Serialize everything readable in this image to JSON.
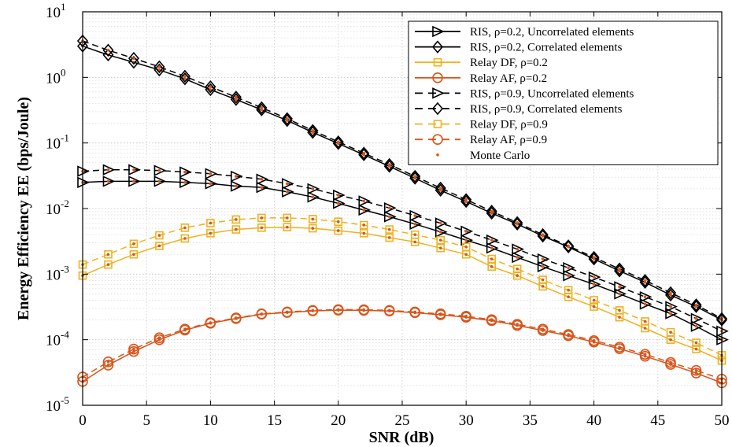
{
  "chart_data": {
    "type": "line",
    "title": "",
    "xlabel": "SNR (dB)",
    "ylabel": "Energy Efficiency EE (bps/Joule)",
    "xlim": [
      0,
      50
    ],
    "ylim": [
      1e-05,
      10
    ],
    "yscale": "log",
    "grid": true,
    "legend_position": "top-right",
    "x_ticks": [
      0,
      5,
      10,
      15,
      20,
      25,
      30,
      35,
      40,
      45,
      50
    ],
    "y_ticks": [
      {
        "value": 1e-05,
        "base": "10",
        "exp": "-5"
      },
      {
        "value": 0.0001,
        "base": "10",
        "exp": "-4"
      },
      {
        "value": 0.001,
        "base": "10",
        "exp": "-3"
      },
      {
        "value": 0.01,
        "base": "10",
        "exp": "-2"
      },
      {
        "value": 0.1,
        "base": "10",
        "exp": "-1"
      },
      {
        "value": 1,
        "base": "10",
        "exp": "0"
      },
      {
        "value": 10,
        "base": "10",
        "exp": "1"
      }
    ],
    "x": [
      0,
      2,
      4,
      6,
      8,
      10,
      12,
      14,
      16,
      18,
      20,
      22,
      24,
      26,
      28,
      30,
      32,
      34,
      36,
      38,
      40,
      42,
      44,
      46,
      48,
      50
    ],
    "monte_carlo_color": "#d9541a",
    "series": [
      {
        "name": "RIS, ρ=0.2, Uncorrelated elements",
        "color": "#000000",
        "dash": "solid",
        "marker": "triangle-right",
        "values": [
          0.025,
          0.026,
          0.026,
          0.026,
          0.025,
          0.024,
          0.022,
          0.021,
          0.018,
          0.015,
          0.012,
          0.0095,
          0.0075,
          0.0058,
          0.0044,
          0.0033,
          0.0025,
          0.0018,
          0.0013,
          0.00095,
          0.0007,
          0.0005,
          0.00035,
          0.00025,
          0.00016,
          0.0001
        ]
      },
      {
        "name": "RIS, ρ=0.2, Correlated elements",
        "color": "#000000",
        "dash": "solid",
        "marker": "diamond",
        "values": [
          3.0,
          2.2,
          1.7,
          1.3,
          0.95,
          0.65,
          0.46,
          0.32,
          0.22,
          0.145,
          0.098,
          0.066,
          0.044,
          0.029,
          0.019,
          0.0128,
          0.0085,
          0.0058,
          0.0038,
          0.0026,
          0.0017,
          0.00112,
          0.00075,
          0.00048,
          0.00032,
          0.0002
        ]
      },
      {
        "name": "Relay DF, ρ=0.2",
        "color": "#eeb220",
        "dash": "solid",
        "marker": "square",
        "values": [
          0.00095,
          0.0014,
          0.002,
          0.0027,
          0.0035,
          0.0042,
          0.0048,
          0.0051,
          0.0052,
          0.005,
          0.0046,
          0.0042,
          0.0036,
          0.0031,
          0.0025,
          0.002,
          0.0013,
          0.00095,
          0.00065,
          0.00045,
          0.00032,
          0.00022,
          0.00015,
          0.0001,
          7.2e-05,
          4.8e-05
        ]
      },
      {
        "name": "Relay AF, ρ=0.2",
        "color": "#d9541a",
        "dash": "solid",
        "marker": "circle",
        "values": [
          2.3e-05,
          4.1e-05,
          6.6e-05,
          0.0001,
          0.00014,
          0.000178,
          0.00021,
          0.000245,
          0.00026,
          0.000275,
          0.000282,
          0.00028,
          0.000274,
          0.000258,
          0.00024,
          0.00022,
          0.000195,
          0.000165,
          0.000138,
          0.000115,
          9.2e-05,
          7.3e-05,
          5.6e-05,
          4.2e-05,
          3.1e-05,
          2.2e-05
        ]
      },
      {
        "name": "RIS, ρ=0.9, Uncorrelated elements",
        "color": "#000000",
        "dash": "dashed",
        "marker": "triangle-right",
        "values": [
          0.037,
          0.039,
          0.039,
          0.038,
          0.036,
          0.034,
          0.031,
          0.028,
          0.024,
          0.02,
          0.016,
          0.013,
          0.0102,
          0.0078,
          0.006,
          0.0045,
          0.0033,
          0.0024,
          0.0017,
          0.00125,
          0.0009,
          0.00064,
          0.00045,
          0.00032,
          0.00021,
          0.000135
        ]
      },
      {
        "name": "RIS, ρ=0.9, Correlated elements",
        "color": "#000000",
        "dash": "dashed",
        "marker": "diamond",
        "values": [
          3.6,
          2.6,
          1.95,
          1.45,
          1.04,
          0.72,
          0.5,
          0.345,
          0.235,
          0.155,
          0.104,
          0.07,
          0.047,
          0.031,
          0.0205,
          0.0137,
          0.0091,
          0.0061,
          0.004,
          0.0027,
          0.0018,
          0.0012,
          0.0008,
          0.00052,
          0.00034,
          0.00021
        ]
      },
      {
        "name": "Relay DF, ρ=0.9",
        "color": "#eeb220",
        "dash": "dashed",
        "marker": "square",
        "values": [
          0.0014,
          0.002,
          0.0029,
          0.0039,
          0.0051,
          0.006,
          0.0068,
          0.0072,
          0.0072,
          0.0069,
          0.0063,
          0.0056,
          0.0048,
          0.004,
          0.0033,
          0.0026,
          0.0017,
          0.0012,
          0.00082,
          0.00057,
          0.0004,
          0.00028,
          0.00019,
          0.00013,
          9e-05,
          5.8e-05
        ]
      },
      {
        "name": "Relay AF, ρ=0.9",
        "color": "#d9541a",
        "dash": "dashed",
        "marker": "circle",
        "values": [
          2.7e-05,
          4.6e-05,
          7.2e-05,
          0.000107,
          0.000145,
          0.000182,
          0.000215,
          0.000248,
          0.000265,
          0.00028,
          0.000288,
          0.000287,
          0.00028,
          0.000265,
          0.000248,
          0.000228,
          0.000202,
          0.000172,
          0.000145,
          0.00012,
          9.7e-05,
          7.7e-05,
          6e-05,
          4.5e-05,
          3.4e-05,
          2.5e-05
        ]
      }
    ],
    "legend": [
      {
        "name": "RIS, ρ=0.2, Uncorrelated elements",
        "color": "#000000",
        "dash": "solid",
        "marker": "triangle-right"
      },
      {
        "name": "RIS, ρ=0.2, Correlated elements",
        "color": "#000000",
        "dash": "solid",
        "marker": "diamond"
      },
      {
        "name": "Relay DF,  ρ=0.2",
        "color": "#eeb220",
        "dash": "solid",
        "marker": "square"
      },
      {
        "name": "Relay AF,  ρ=0.2",
        "color": "#d9541a",
        "dash": "solid",
        "marker": "circle"
      },
      {
        "name": "RIS, ρ=0.9, Uncorrelated elements",
        "color": "#000000",
        "dash": "dashed",
        "marker": "triangle-right"
      },
      {
        "name": "RIS, ρ=0.9, Correlated elements",
        "color": "#000000",
        "dash": "dashed",
        "marker": "diamond"
      },
      {
        "name": "Relay DF,  ρ=0.9",
        "color": "#eeb220",
        "dash": "dashed",
        "marker": "square"
      },
      {
        "name": "Relay AF,  ρ=0.9",
        "color": "#d9541a",
        "dash": "dashed",
        "marker": "circle"
      },
      {
        "name": "Monte Carlo",
        "color": "#d9541a",
        "dash": "none",
        "marker": "dot"
      }
    ]
  }
}
